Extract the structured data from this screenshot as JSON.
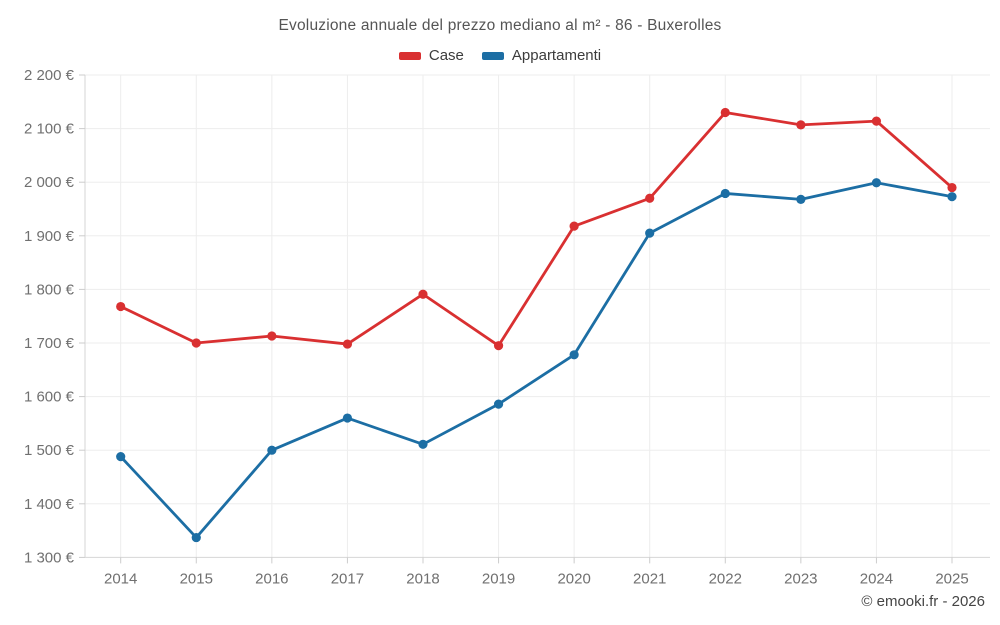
{
  "title": "Evoluzione annuale del prezzo mediano al m² - 86 - Buxerolles",
  "attribution": "© emooki.fr - 2026",
  "legend": [
    {
      "label": "Case",
      "color": "#d93031"
    },
    {
      "label": "Appartamenti",
      "color": "#1c6ea4"
    }
  ],
  "chart_data": {
    "type": "line",
    "title": "Evoluzione annuale del prezzo mediano al m² - 86 - Buxerolles",
    "xlabel": "",
    "ylabel": "",
    "grid": true,
    "legend_position": "top",
    "categories": [
      "2014",
      "2015",
      "2016",
      "2017",
      "2018",
      "2019",
      "2020",
      "2021",
      "2022",
      "2023",
      "2024",
      "2025"
    ],
    "series": [
      {
        "name": "Case",
        "color": "#d93031",
        "values": [
          1768,
          1700,
          1713,
          1698,
          1791,
          1695,
          1918,
          1970,
          2130,
          2107,
          2114,
          1990
        ]
      },
      {
        "name": "Appartamenti",
        "color": "#1c6ea4",
        "values": [
          1488,
          1337,
          1500,
          1560,
          1511,
          1586,
          1678,
          1905,
          1979,
          1968,
          1999,
          1973
        ]
      }
    ],
    "ylim": [
      1300,
      2200
    ],
    "y_ticks": [
      {
        "value": 2200,
        "label": "2 200 €"
      },
      {
        "value": 2100,
        "label": "2 100 €"
      },
      {
        "value": 2000,
        "label": "2 000 €"
      },
      {
        "value": 1900,
        "label": "1 900 €"
      },
      {
        "value": 1800,
        "label": "1 800 €"
      },
      {
        "value": 1700,
        "label": "1 700 €"
      },
      {
        "value": 1600,
        "label": "1 600 €"
      },
      {
        "value": 1500,
        "label": "1 500 €"
      },
      {
        "value": 1400,
        "label": "1 400 €"
      },
      {
        "value": 1300,
        "label": "1 300 €"
      }
    ]
  }
}
